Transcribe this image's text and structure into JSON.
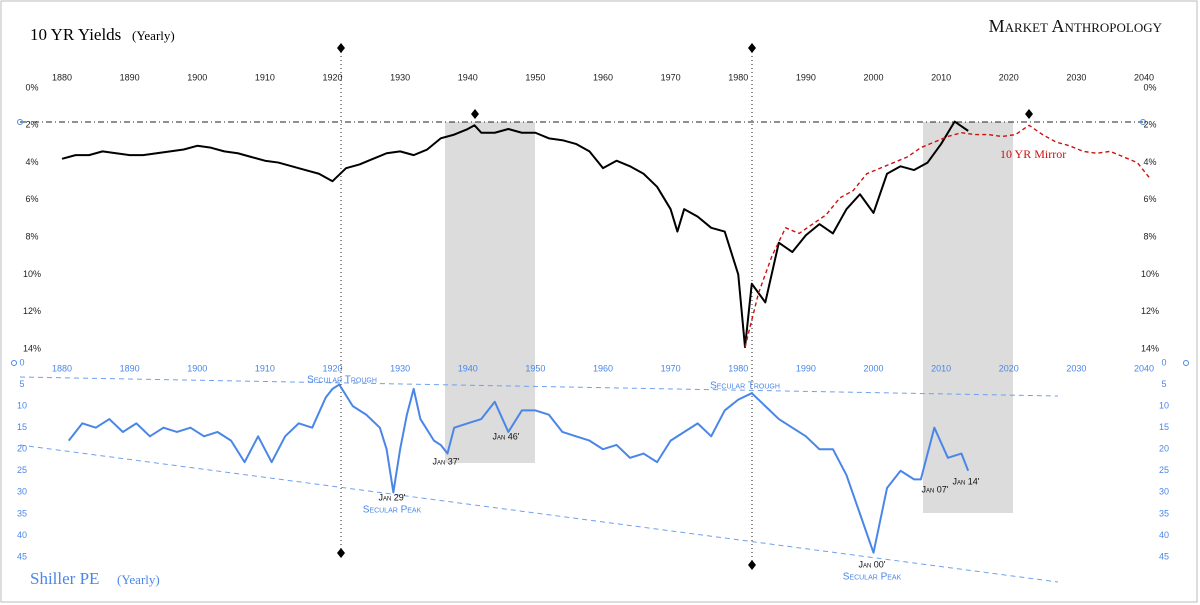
{
  "logo": "Market Anthropology",
  "chart_data": [
    {
      "type": "line",
      "title": "10 YR Yields",
      "subtitle": "(Yearly)",
      "inverted": true,
      "xlim": [
        1880,
        2040
      ],
      "xticks": [
        1880,
        1890,
        1900,
        1910,
        1920,
        1930,
        1940,
        1950,
        1960,
        1970,
        1980,
        1990,
        2000,
        2010,
        2020,
        2030,
        2040
      ],
      "ylim": [
        0,
        14
      ],
      "yticks": [
        {
          "value": 0,
          "label": "0%"
        },
        {
          "value": 2,
          "label": "2%"
        },
        {
          "value": 4,
          "label": "4%"
        },
        {
          "value": 6,
          "label": "6%"
        },
        {
          "value": 8,
          "label": "8%"
        },
        {
          "value": 10,
          "label": "10%"
        },
        {
          "value": 12,
          "label": "12%"
        },
        {
          "value": 14,
          "label": "14%"
        }
      ],
      "grid": false,
      "series": [
        {
          "color": "#000000",
          "dashed": false,
          "x": [
            1880,
            1882,
            1884,
            1886,
            1888,
            1890,
            1892,
            1894,
            1896,
            1898,
            1900,
            1902,
            1904,
            1906,
            1908,
            1910,
            1912,
            1914,
            1916,
            1918,
            1920,
            1922,
            1924,
            1926,
            1928,
            1930,
            1932,
            1934,
            1936,
            1938,
            1940,
            1941,
            1942,
            1944,
            1946,
            1948,
            1950,
            1952,
            1954,
            1956,
            1958,
            1960,
            1962,
            1964,
            1966,
            1968,
            1970,
            1971,
            1972,
            1974,
            1976,
            1978,
            1980,
            1981,
            1982,
            1984,
            1986,
            1988,
            1990,
            1992,
            1994,
            1996,
            1998,
            2000,
            2002,
            2004,
            2006,
            2008,
            2010,
            2012,
            2014
          ],
          "values": [
            3.8,
            3.6,
            3.6,
            3.4,
            3.5,
            3.6,
            3.6,
            3.5,
            3.4,
            3.3,
            3.1,
            3.2,
            3.4,
            3.5,
            3.7,
            3.9,
            4.0,
            4.2,
            4.4,
            4.6,
            5.0,
            4.3,
            4.1,
            3.8,
            3.5,
            3.4,
            3.6,
            3.3,
            2.7,
            2.5,
            2.2,
            2.0,
            2.4,
            2.4,
            2.2,
            2.4,
            2.4,
            2.7,
            2.8,
            3.0,
            3.4,
            4.3,
            3.9,
            4.2,
            4.6,
            5.3,
            6.5,
            7.7,
            6.5,
            6.9,
            7.5,
            7.7,
            10.0,
            13.9,
            10.5,
            11.5,
            8.3,
            8.8,
            7.9,
            7.3,
            7.8,
            6.5,
            5.7,
            6.7,
            4.6,
            4.2,
            4.4,
            4.0,
            3.0,
            1.8,
            2.3
          ]
        },
        {
          "name": "10 YR Mirror",
          "color": "#cc1111",
          "dashed": true,
          "x": [
            1981,
            1983,
            1985,
            1987,
            1989,
            1991,
            1993,
            1995,
            1997,
            1999,
            2001,
            2003,
            2005,
            2007,
            2009,
            2011,
            2013,
            2015,
            2017,
            2019,
            2021,
            2023,
            2025,
            2027,
            2029,
            2031,
            2033,
            2035,
            2037,
            2039,
            2041
          ],
          "values": [
            13.9,
            11.0,
            9.0,
            7.5,
            7.8,
            7.3,
            6.8,
            5.9,
            5.5,
            4.6,
            4.3,
            4.0,
            3.7,
            3.2,
            2.9,
            2.6,
            2.4,
            2.5,
            2.5,
            2.6,
            2.5,
            2.0,
            2.5,
            2.9,
            3.1,
            3.4,
            3.5,
            3.4,
            3.7,
            4.0,
            4.9
          ]
        }
      ]
    },
    {
      "type": "line",
      "title": "Shiller PE",
      "subtitle": "(Yearly)",
      "inverted": true,
      "xlim": [
        1880,
        2040
      ],
      "xticks": [
        1880,
        1890,
        1900,
        1910,
        1920,
        1930,
        1940,
        1950,
        1960,
        1970,
        1980,
        1990,
        2000,
        2010,
        2020,
        2030,
        2040
      ],
      "ylim": [
        0,
        45
      ],
      "yticks": [
        0,
        5,
        10,
        15,
        20,
        25,
        30,
        35,
        40,
        45
      ],
      "grid": false,
      "annotations": [
        "Secular Trough",
        "Jan 29'",
        "Secular Peak",
        "Jan 37'",
        "Jan 46'",
        "Secular Trough",
        "Jan 00'",
        "Secular Peak",
        "Jan 07'",
        "Jan 14'"
      ],
      "series": [
        {
          "color": "#4a86e8",
          "dashed": false,
          "x": [
            1881,
            1883,
            1885,
            1887,
            1889,
            1891,
            1893,
            1895,
            1897,
            1899,
            1901,
            1903,
            1905,
            1907,
            1909,
            1911,
            1913,
            1915,
            1917,
            1919,
            1920,
            1921,
            1923,
            1925,
            1927,
            1928,
            1929,
            1930,
            1931,
            1932,
            1933,
            1935,
            1936,
            1937,
            1938,
            1940,
            1942,
            1944,
            1946,
            1948,
            1950,
            1952,
            1954,
            1956,
            1958,
            1960,
            1962,
            1964,
            1966,
            1968,
            1970,
            1972,
            1974,
            1976,
            1978,
            1980,
            1982,
            1984,
            1986,
            1988,
            1990,
            1992,
            1994,
            1996,
            1998,
            2000,
            2002,
            2004,
            2006,
            2007,
            2009,
            2011,
            2013,
            2014
          ],
          "values": [
            18,
            14,
            15,
            13,
            16,
            14,
            17,
            15,
            16,
            15,
            17,
            16,
            18,
            23,
            17,
            23,
            17,
            14,
            15,
            8,
            6,
            5,
            10,
            12,
            15,
            20,
            30,
            20,
            12,
            6,
            13,
            18,
            19,
            21,
            15,
            14,
            13,
            9,
            16,
            11,
            11,
            12,
            16,
            17,
            18,
            20,
            19,
            22,
            21,
            23,
            18,
            16,
            14,
            17,
            11,
            8.5,
            7,
            10,
            13,
            15,
            17,
            20,
            20,
            26,
            35,
            44,
            29,
            25,
            27,
            27,
            15,
            22,
            21,
            25
          ]
        }
      ]
    }
  ]
}
